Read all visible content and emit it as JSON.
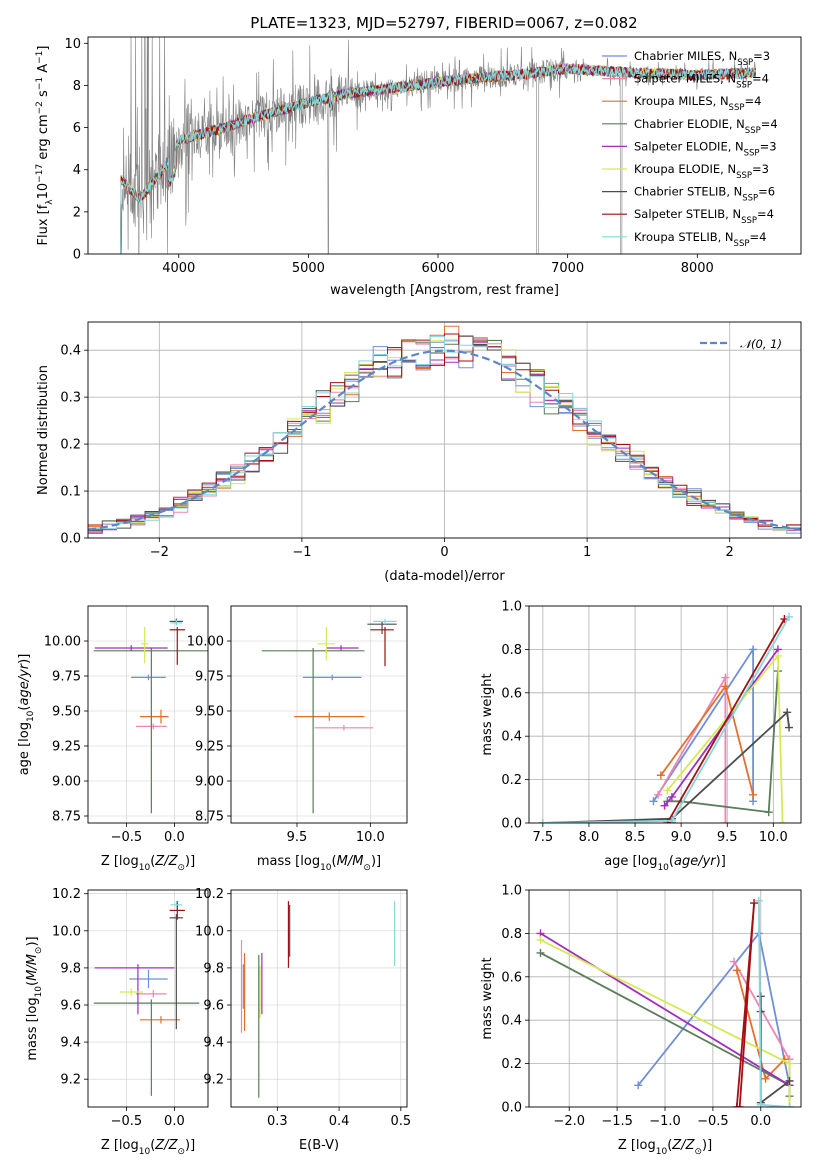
{
  "title": "PLATE=1323, MJD=52797, FIBERID=0067, z=0.082",
  "colors": {
    "Chabrier MILES": "#6f8fd8",
    "Salpeter MILES": "#ee85b5",
    "Kroupa MILES": "#e2702d",
    "Chabrier ELODIE": "#5a7d5a",
    "Salpeter ELODIE": "#a12dbf",
    "Kroupa ELODIE": "#d6ea55",
    "Chabrier STELIB": "#4d4d4d",
    "Salpeter STELIB": "#a30f15",
    "Kroupa STELIB": "#86d7dc",
    "data": "#808080",
    "normal": "#5b87c9"
  },
  "chart_data": [
    {
      "id": "spectrum",
      "type": "line",
      "xlabel": "wavelength [Angstrom, rest frame]",
      "ylabel": "Flux [fλ10⁻¹⁷ erg cm⁻² s⁻¹ A⁻¹]",
      "xlim": [
        3300,
        8800
      ],
      "ylim": [
        0,
        10.3
      ],
      "xticks": [
        4000,
        5000,
        6000,
        7000,
        8000
      ],
      "yticks": [
        0,
        2,
        4,
        6,
        8,
        10
      ],
      "continuum": {
        "x": [
          3550,
          3700,
          3950,
          4000,
          4300,
          4600,
          5000,
          5300,
          5800,
          6200,
          6600,
          7000,
          7500,
          8000,
          8450
        ],
        "y": [
          3.6,
          2.6,
          4.6,
          5.4,
          5.9,
          6.5,
          7.2,
          7.6,
          8.0,
          8.3,
          8.5,
          8.8,
          8.6,
          8.5,
          8.6
        ]
      },
      "legend": [
        {
          "name": "Chabrier MILES, N_SSP=3",
          "label": "Chabrier MILES, N",
          "sub": "SSP",
          "tail": "=3"
        },
        {
          "name": "Salpeter MILES, N_SSP=4",
          "label": "Salpeter MILES, N",
          "sub": "SSP",
          "tail": "=4"
        },
        {
          "name": "Kroupa MILES, N_SSP=4",
          "label": "Kroupa MILES, N",
          "sub": "SSP",
          "tail": "=4"
        },
        {
          "name": "Chabrier ELODIE, N_SSP=4",
          "label": "Chabrier ELODIE, N",
          "sub": "SSP",
          "tail": "=4"
        },
        {
          "name": "Salpeter ELODIE, N_SSP=3",
          "label": "Salpeter ELODIE, N",
          "sub": "SSP",
          "tail": "=3"
        },
        {
          "name": "Kroupa ELODIE, N_SSP=3",
          "label": "Kroupa ELODIE, N",
          "sub": "SSP",
          "tail": "=3"
        },
        {
          "name": "Chabrier STELIB, N_SSP=6",
          "label": "Chabrier STELIB, N",
          "sub": "SSP",
          "tail": "=6"
        },
        {
          "name": "Salpeter STELIB, N_SSP=4",
          "label": "Salpeter STELIB, N",
          "sub": "SSP",
          "tail": "=4"
        },
        {
          "name": "Kroupa STELIB, N_SSP=4",
          "label": "Kroupa STELIB, N",
          "sub": "SSP",
          "tail": "=4"
        }
      ]
    },
    {
      "id": "residuals",
      "type": "line",
      "xlabel": "(data-model)/error",
      "ylabel": "Normed distribution",
      "xlim": [
        -2.5,
        2.5
      ],
      "ylim": [
        0,
        0.46
      ],
      "xticks": [
        -2,
        -1,
        0,
        1,
        2
      ],
      "yticks": [
        0.0,
        0.1,
        0.2,
        0.3,
        0.4
      ],
      "grid": true,
      "legend_label": "𝒩(0, 1)",
      "legend_position": "upper right"
    },
    {
      "id": "age_vs_Z",
      "type": "scatter",
      "xlabel": "Z [log10(Z/Z☉)]",
      "ylabel": "age  [log10(age/yr)]",
      "xlim": [
        -0.9,
        0.35
      ],
      "ylim": [
        8.7,
        10.25
      ],
      "xticks": [
        -0.5,
        0.0
      ],
      "yticks": [
        8.75,
        9.0,
        9.25,
        9.5,
        9.75,
        10.0
      ],
      "points": [
        {
          "s": "Chabrier MILES",
          "x": -0.27,
          "xe": [
            0.18,
            0.18
          ],
          "y": 9.74,
          "ye": [
            0.02,
            0.02
          ]
        },
        {
          "s": "Salpeter MILES",
          "x": -0.22,
          "xe": [
            0.18,
            0.14
          ],
          "y": 9.39,
          "ye": [
            0.02,
            0.02
          ]
        },
        {
          "s": "Kroupa MILES",
          "x": -0.14,
          "xe": [
            0.22,
            0.08
          ],
          "y": 9.46,
          "ye": [
            0.05,
            0.05
          ]
        },
        {
          "s": "Chabrier ELODIE",
          "x": -0.24,
          "xe": [
            0.6,
            0.6
          ],
          "y": 9.93,
          "ye": [
            1.16,
            0.02
          ]
        },
        {
          "s": "Salpeter ELODIE",
          "x": -0.45,
          "xe": [
            0.38,
            0.38
          ],
          "y": 9.95,
          "ye": [
            0.02,
            0.02
          ]
        },
        {
          "s": "Kroupa ELODIE",
          "x": -0.31,
          "xe": [
            0.04,
            0.04
          ],
          "y": 9.98,
          "ye": [
            0.14,
            0.12
          ]
        },
        {
          "s": "Chabrier STELIB",
          "x": 0.02,
          "xe": [
            0.07,
            0.07
          ],
          "y": 10.14,
          "ye": [
            0.02,
            0.02
          ]
        },
        {
          "s": "Salpeter STELIB",
          "x": 0.03,
          "xe": [
            0.08,
            0.08
          ],
          "y": 10.08,
          "ye": [
            0.25,
            0.02
          ]
        },
        {
          "s": "Kroupa STELIB",
          "x": 0.02,
          "xe": [
            0.06,
            0.06
          ],
          "y": 10.13,
          "ye": [
            0.02,
            0.02
          ]
        }
      ]
    },
    {
      "id": "age_vs_mass",
      "type": "scatter",
      "xlabel": "mass [log10(M/M☉)]",
      "ylabel": "",
      "xlim": [
        9.05,
        10.25
      ],
      "ylim": [
        8.7,
        10.25
      ],
      "xticks": [
        9.5,
        10.0
      ],
      "yticks": [
        8.75,
        9.0,
        9.25,
        9.5,
        9.75,
        10.0
      ],
      "points": [
        {
          "s": "Chabrier MILES",
          "x": 9.74,
          "xe": [
            0.2,
            0.2
          ],
          "y": 9.74,
          "ye": [
            0.02,
            0.02
          ]
        },
        {
          "s": "Salpeter MILES",
          "x": 9.82,
          "xe": [
            0.2,
            0.2
          ],
          "y": 9.38,
          "ye": [
            0.02,
            0.02
          ]
        },
        {
          "s": "Kroupa MILES",
          "x": 9.72,
          "xe": [
            0.24,
            0.24
          ],
          "y": 9.46,
          "ye": [
            0.03,
            0.03
          ]
        },
        {
          "s": "Chabrier ELODIE",
          "x": 9.61,
          "xe": [
            0.35,
            0.35
          ],
          "y": 9.93,
          "ye": [
            1.16,
            0.02
          ]
        },
        {
          "s": "Salpeter ELODIE",
          "x": 9.8,
          "xe": [
            0.1,
            0.12
          ],
          "y": 9.95,
          "ye": [
            0.02,
            0.02
          ]
        },
        {
          "s": "Kroupa ELODIE",
          "x": 9.7,
          "xe": [
            0.06,
            0.06
          ],
          "y": 9.98,
          "ye": [
            0.12,
            0.12
          ]
        },
        {
          "s": "Chabrier STELIB",
          "x": 10.08,
          "xe": [
            0.1,
            0.1
          ],
          "y": 10.12,
          "ye": [
            0.07,
            0.02
          ]
        },
        {
          "s": "Salpeter STELIB",
          "x": 10.1,
          "xe": [
            0.1,
            0.06
          ],
          "y": 10.08,
          "ye": [
            0.26,
            0.02
          ]
        },
        {
          "s": "Kroupa STELIB",
          "x": 10.1,
          "xe": [
            0.08,
            0.08
          ],
          "y": 10.14,
          "ye": [
            0.02,
            0.02
          ]
        }
      ]
    },
    {
      "id": "massweight_vs_age",
      "type": "line",
      "xlabel": "age  [log10(age/yr)]",
      "ylabel": "mass weight",
      "xlim": [
        7.35,
        10.3
      ],
      "ylim": [
        0,
        1
      ],
      "xticks": [
        7.5,
        8.0,
        8.5,
        9.0,
        9.5,
        10.0
      ],
      "yticks": [
        0.0,
        0.2,
        0.4,
        0.6,
        0.8,
        1.0
      ],
      "grid": true,
      "series": [
        {
          "s": "Chabrier MILES",
          "x": [
            8.7,
            9.78,
            9.78
          ],
          "y": [
            0.1,
            0.8,
            0.1
          ]
        },
        {
          "s": "Salpeter MILES",
          "x": [
            8.75,
            9.48,
            9.48
          ],
          "y": [
            0.13,
            0.67,
            0.0
          ]
        },
        {
          "s": "Kroupa MILES",
          "x": [
            8.78,
            9.48,
            9.78
          ],
          "y": [
            0.22,
            0.63,
            0.13
          ]
        },
        {
          "s": "Chabrier ELODIE",
          "x": [
            8.85,
            9.0,
            9.95,
            10.05
          ],
          "y": [
            0.1,
            0.1,
            0.05,
            0.7
          ]
        },
        {
          "s": "Salpeter ELODIE",
          "x": [
            8.82,
            8.9,
            10.05
          ],
          "y": [
            0.08,
            0.12,
            0.8
          ]
        },
        {
          "s": "Kroupa ELODIE",
          "x": [
            8.85,
            10.05,
            10.1
          ],
          "y": [
            0.15,
            0.77,
            0.0
          ]
        },
        {
          "s": "Chabrier STELIB",
          "x": [
            7.5,
            8.9,
            10.15,
            10.17
          ],
          "y": [
            0.0,
            0.02,
            0.51,
            0.44
          ]
        },
        {
          "s": "Salpeter STELIB",
          "x": [
            8.9,
            8.85,
            10.12
          ],
          "y": [
            0.0,
            0.0,
            0.94
          ]
        },
        {
          "s": "Kroupa STELIB",
          "x": [
            7.5,
            8.9,
            10.17
          ],
          "y": [
            0.0,
            0.01,
            0.95
          ]
        }
      ]
    },
    {
      "id": "mass_vs_Z",
      "type": "scatter",
      "xlabel": "Z [log10(Z/Z☉)]",
      "ylabel": "mass [log10(M/M☉)]",
      "xlim": [
        -0.9,
        0.35
      ],
      "ylim": [
        9.05,
        10.22
      ],
      "xticks": [
        -0.5,
        0.0
      ],
      "yticks": [
        9.2,
        9.4,
        9.6,
        9.8,
        10.0,
        10.2
      ],
      "points": [
        {
          "s": "Chabrier MILES",
          "x": -0.27,
          "xe": [
            0.2,
            0.2
          ],
          "y": 9.74,
          "ye": [
            0.05,
            0.05
          ]
        },
        {
          "s": "Salpeter MILES",
          "x": -0.22,
          "xe": [
            0.18,
            0.14
          ],
          "y": 9.66,
          "ye": [
            0.02,
            0.02
          ]
        },
        {
          "s": "Kroupa MILES",
          "x": -0.14,
          "xe": [
            0.22,
            0.2
          ],
          "y": 9.52,
          "ye": [
            0.02,
            0.02
          ]
        },
        {
          "s": "Chabrier ELODIE",
          "x": -0.24,
          "xe": [
            0.6,
            0.5
          ],
          "y": 9.61,
          "ye": [
            0.5,
            0.02
          ]
        },
        {
          "s": "Salpeter ELODIE",
          "x": -0.38,
          "xe": [
            0.45,
            0.38
          ],
          "y": 9.8,
          "ye": [
            0.25,
            0.02
          ]
        },
        {
          "s": "Kroupa ELODIE",
          "x": -0.45,
          "xe": [
            0.12,
            0.12
          ],
          "y": 9.67,
          "ye": [
            0.02,
            0.02
          ]
        },
        {
          "s": "Chabrier STELIB",
          "x": 0.02,
          "xe": [
            0.07,
            0.07
          ],
          "y": 10.07,
          "ye": [
            0.6,
            0.02
          ]
        },
        {
          "s": "Salpeter STELIB",
          "x": 0.03,
          "xe": [
            0.08,
            0.08
          ],
          "y": 10.11,
          "ye": [
            0.05,
            0.05
          ]
        },
        {
          "s": "Kroupa STELIB",
          "x": 0.02,
          "xe": [
            0.06,
            0.06
          ],
          "y": 10.14,
          "ye": [
            0.02,
            0.02
          ]
        }
      ]
    },
    {
      "id": "mass_vs_EBV",
      "type": "scatter",
      "xlabel": "E(B-V)",
      "ylabel": "",
      "xlim": [
        0.225,
        0.51
      ],
      "ylim": [
        9.05,
        10.22
      ],
      "xticks": [
        0.3,
        0.4,
        0.5
      ],
      "yticks": [
        9.2,
        9.4,
        9.6,
        9.8,
        10.0,
        10.2
      ],
      "points": [
        {
          "s": "Chabrier MILES",
          "x": 0.245,
          "y": 9.7,
          "ye": [
            0.12,
            0.12
          ]
        },
        {
          "s": "Salpeter MILES",
          "x": 0.242,
          "y": 9.7,
          "ye": [
            0.25,
            0.25
          ]
        },
        {
          "s": "Kroupa MILES",
          "x": 0.247,
          "y": 9.68,
          "ye": [
            0.22,
            0.2
          ]
        },
        {
          "s": "Chabrier ELODIE",
          "x": 0.27,
          "y": 9.45,
          "ye": [
            0.35,
            0.42
          ]
        },
        {
          "s": "Salpeter ELODIE",
          "x": 0.275,
          "y": 9.7,
          "ye": [
            0.15,
            0.18
          ]
        },
        {
          "s": "Kroupa ELODIE",
          "x": 0.272,
          "y": 9.68,
          "ye": [
            0.15,
            0.13
          ]
        },
        {
          "s": "Chabrier STELIB",
          "x": 0.32,
          "y": 10.0,
          "ye": [
            0.14,
            0.14
          ]
        },
        {
          "s": "Salpeter STELIB",
          "x": 0.318,
          "y": 9.98,
          "ye": [
            0.18,
            0.18
          ]
        },
        {
          "s": "Kroupa STELIB",
          "x": 0.49,
          "y": 9.99,
          "ye": [
            0.18,
            0.17
          ]
        }
      ]
    },
    {
      "id": "massweight_vs_Z",
      "type": "line",
      "xlabel": "Z [log10(Z/Z☉)]",
      "ylabel": "mass weight",
      "xlim": [
        -2.42,
        0.42
      ],
      "ylim": [
        0,
        1
      ],
      "xticks": [
        -2.0,
        -1.5,
        -1.0,
        -0.5,
        0.0
      ],
      "yticks": [
        0.0,
        0.2,
        0.4,
        0.6,
        0.8,
        1.0
      ],
      "grid": true,
      "series": [
        {
          "s": "Chabrier MILES",
          "x": [
            -1.28,
            -0.02,
            0.3
          ],
          "y": [
            0.1,
            0.8,
            0.1
          ]
        },
        {
          "s": "Salpeter MILES",
          "x": [
            -0.28,
            0.3,
            0.3
          ],
          "y": [
            0.67,
            0.22,
            0.0
          ]
        },
        {
          "s": "Kroupa MILES",
          "x": [
            -0.25,
            0.05,
            0.25
          ],
          "y": [
            0.63,
            0.13,
            0.22
          ]
        },
        {
          "s": "Chabrier ELODIE",
          "x": [
            -2.3,
            0.3,
            0.3
          ],
          "y": [
            0.71,
            0.1,
            0.05
          ]
        },
        {
          "s": "Salpeter ELODIE",
          "x": [
            -2.3,
            0.3,
            0.3
          ],
          "y": [
            0.8,
            0.1,
            0.12
          ]
        },
        {
          "s": "Kroupa ELODIE",
          "x": [
            -2.3,
            0.3,
            0.3
          ],
          "y": [
            0.77,
            0.2,
            0.0
          ]
        },
        {
          "s": "Chabrier STELIB",
          "x": [
            0.0,
            0.0,
            0.0,
            0.3
          ],
          "y": [
            0.51,
            0.44,
            0.02,
            0.12
          ]
        },
        {
          "s": "Salpeter STELIB",
          "x": [
            -0.22,
            -0.07,
            -0.25
          ],
          "y": [
            0.0,
            0.94,
            0.0
          ]
        },
        {
          "s": "Kroupa STELIB",
          "x": [
            -0.02,
            0.0,
            0.3
          ],
          "y": [
            0.95,
            0.01,
            0.0
          ]
        }
      ]
    }
  ]
}
